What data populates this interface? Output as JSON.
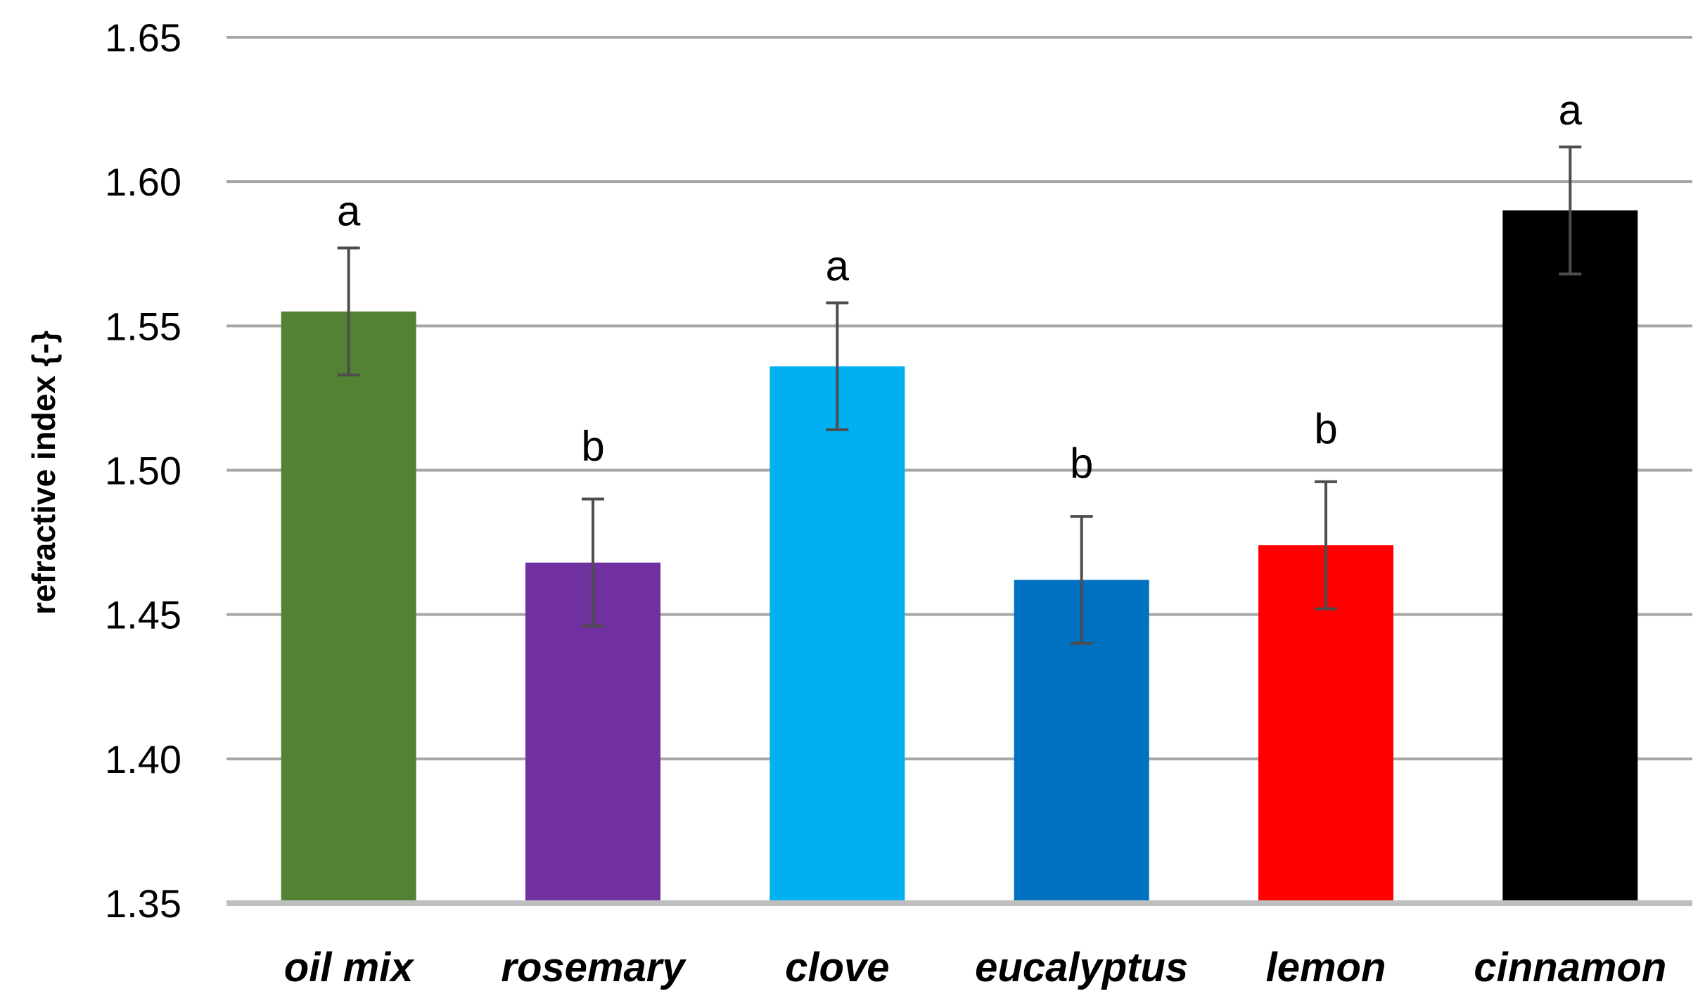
{
  "chart_data": {
    "type": "bar",
    "title": "",
    "xlabel": "",
    "ylabel": "refractive index {-}",
    "ylim": [
      1.35,
      1.65
    ],
    "yticks": [
      "1.35",
      "1.40",
      "1.45",
      "1.50",
      "1.55",
      "1.60",
      "1.65"
    ],
    "grid": true,
    "legend": "none",
    "categories": [
      "oil mix",
      "rosemary",
      "clove",
      "eucalyptus",
      "lemon",
      "cinnamon"
    ],
    "values": [
      1.555,
      1.468,
      1.536,
      1.462,
      1.474,
      1.59
    ],
    "errors": [
      0.022,
      0.022,
      0.022,
      0.022,
      0.022,
      0.022
    ],
    "significance": [
      "a",
      "b",
      "a",
      "b",
      "b",
      "a"
    ],
    "colors": [
      "#548235",
      "#7030a0",
      "#00b0f0",
      "#0070c0",
      "#ff0000",
      "#000000"
    ]
  }
}
